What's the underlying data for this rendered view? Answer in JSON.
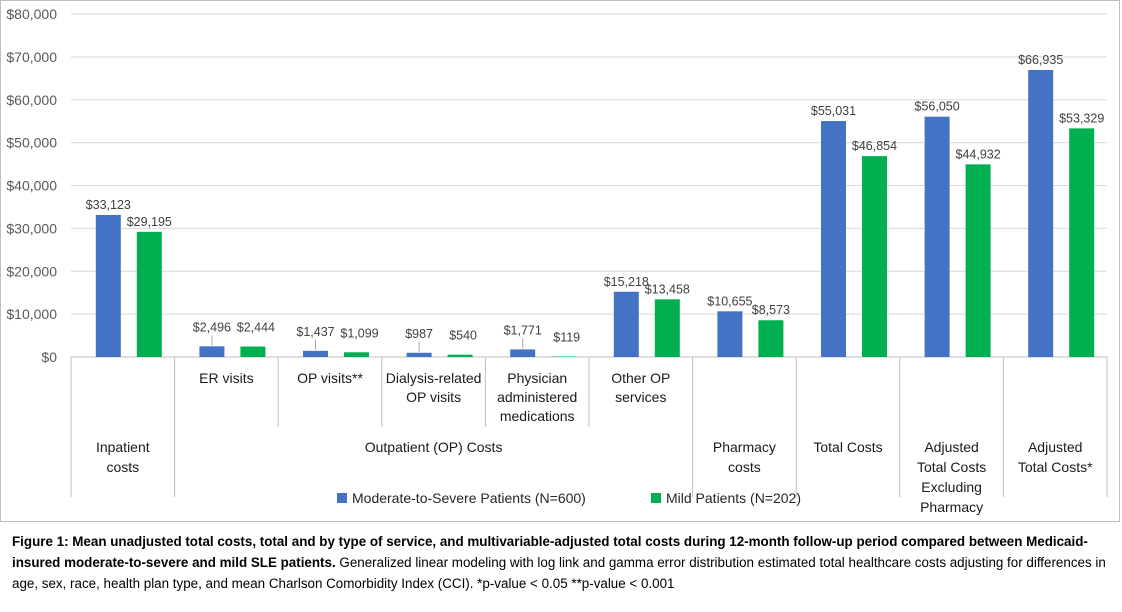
{
  "chart_data": {
    "type": "bar",
    "title": "",
    "xlabel": "",
    "ylabel": "",
    "ylim": [
      0,
      80000
    ],
    "ytick_values": [
      0,
      10000,
      20000,
      30000,
      40000,
      50000,
      60000,
      70000,
      80000
    ],
    "ytick_labels": [
      "$0",
      "$10,000",
      "$20,000",
      "$30,000",
      "$40,000",
      "$50,000",
      "$60,000",
      "$70,000",
      "$80,000"
    ],
    "grid": true,
    "legend_position": "bottom",
    "categories": [
      {
        "label": "",
        "group": "Inpatient costs"
      },
      {
        "label": "ER visits",
        "group": "Outpatient (OP) Costs"
      },
      {
        "label": "OP visits**",
        "group": "Outpatient (OP) Costs"
      },
      {
        "label": "Dialysis-related OP visits",
        "group": "Outpatient (OP) Costs"
      },
      {
        "label": "Physician administered medications",
        "group": "Outpatient (OP) Costs"
      },
      {
        "label": "Other OP services",
        "group": "Outpatient (OP) Costs"
      },
      {
        "label": "",
        "group": "Pharmacy costs"
      },
      {
        "label": "",
        "group": "Total Costs"
      },
      {
        "label": "",
        "group": "Adjusted Total Costs Excluding Pharmacy"
      },
      {
        "label": "",
        "group": "Adjusted Total Costs*"
      }
    ],
    "groups": [
      {
        "label": "Inpatient costs",
        "count": 1
      },
      {
        "label": "Outpatient (OP) Costs",
        "count": 5
      },
      {
        "label": "Pharmacy costs",
        "count": 1
      },
      {
        "label": "Total Costs",
        "count": 1
      },
      {
        "label": "Adjusted Total Costs Excluding Pharmacy",
        "count": 1
      },
      {
        "label": "Adjusted Total Costs*",
        "count": 1
      }
    ],
    "series": [
      {
        "name": "Moderate-to-Severe Patients (N=600)",
        "color": "#4472C4",
        "values": [
          33123,
          2496,
          1437,
          987,
          1771,
          15218,
          10655,
          55031,
          56050,
          66935
        ],
        "labels": [
          "$33,123",
          "$2,496",
          "$1,437",
          "$987",
          "$1,771",
          "$15,218",
          "$10,655",
          "$55,031",
          "$56,050",
          "$66,935"
        ]
      },
      {
        "name": "Mild Patients (N=202)",
        "color": "#00B050",
        "values": [
          29195,
          2444,
          1099,
          540,
          119,
          13458,
          8573,
          46854,
          44932,
          53329
        ],
        "labels": [
          "$29,195",
          "$2,444",
          "$1,099",
          "$540",
          "$119",
          "$13,458",
          "$8,573",
          "$46,854",
          "$44,932",
          "$53,329"
        ]
      }
    ]
  },
  "caption": {
    "bold": "Figure 1: Mean unadjusted total costs, total and by type of service, and multivariable-adjusted total costs during 12-month follow-up period compared between Medicaid-insured moderate-to-severe and mild SLE patients.",
    "text": " Generalized linear modeling with log link and gamma error distribution estimated total healthcare costs adjusting for differences in age, sex, race, health plan type, and mean Charlson Comorbidity  Index (CCI).   *p-value < 0.05      **p-value < 0.001"
  }
}
